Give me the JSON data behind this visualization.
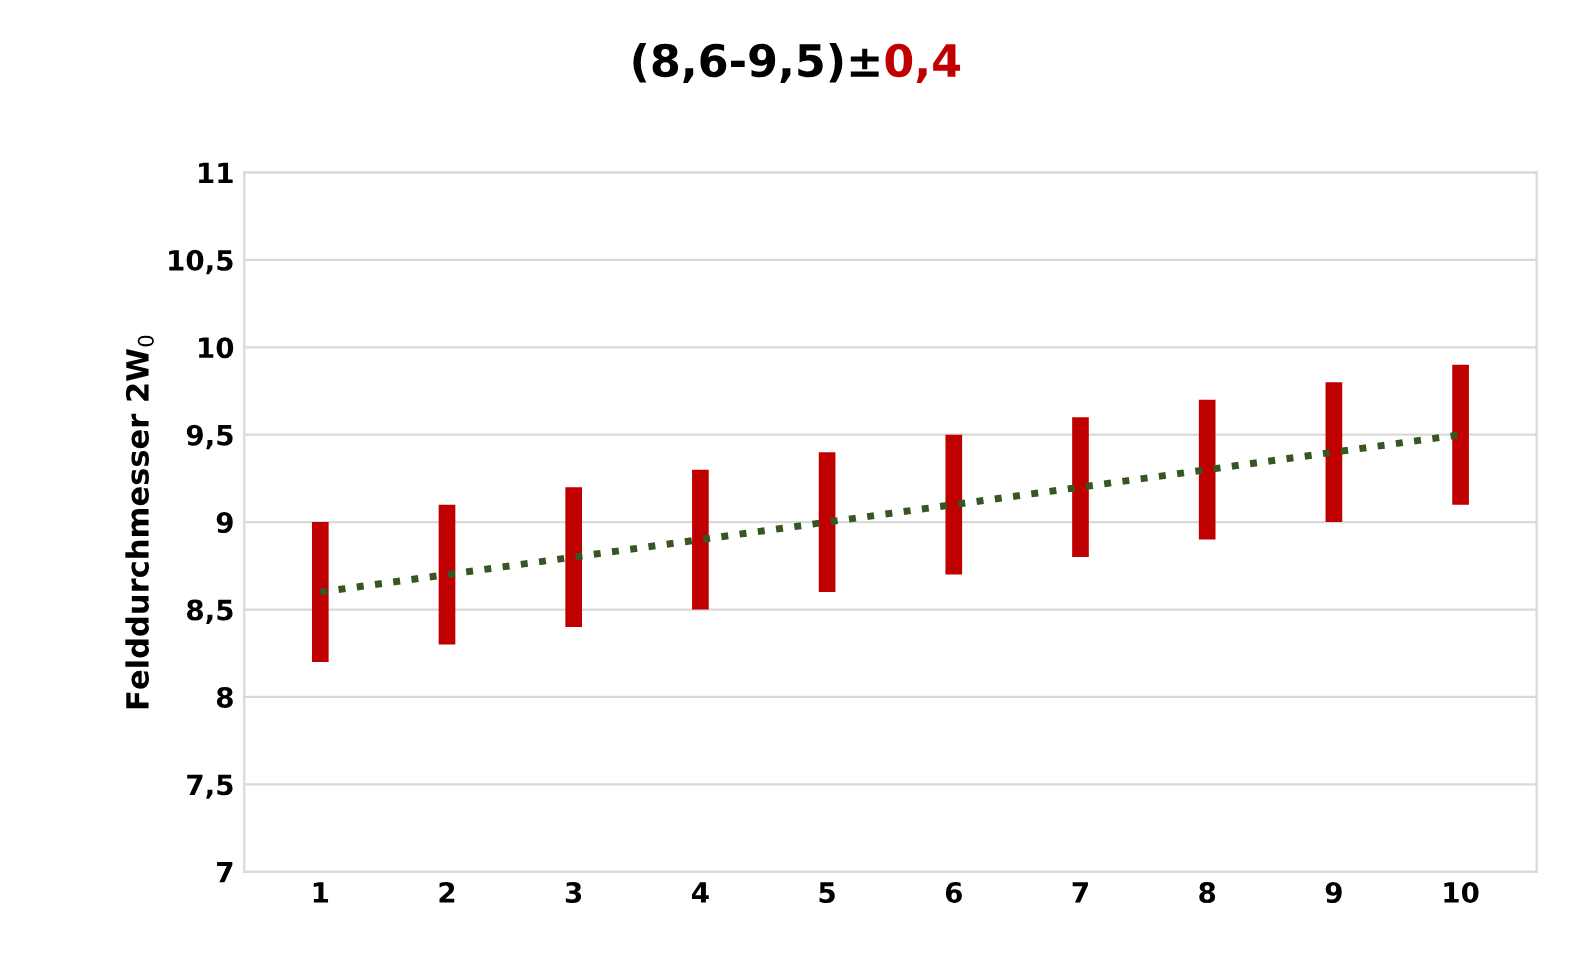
{
  "chart_data": {
    "type": "line",
    "title": "(8,6-9,5)±0,4",
    "ylabel": "Felddurchmesser 2W$_{0}$",
    "categories": [
      "1",
      "2",
      "3",
      "4",
      "5",
      "6",
      "7",
      "8",
      "9",
      "10"
    ],
    "series": [
      {
        "color": "#375623",
        "values": [
          8.6,
          8.7,
          8.8,
          8.9,
          9.0,
          9.1,
          9.2,
          9.3,
          9.4,
          9.5
        ],
        "line_style": "dotted",
        "marker": "none",
        "errors": [
          0.4,
          0.4,
          0.4,
          0.4,
          0.4,
          0.4,
          0.4,
          0.4,
          0.4,
          0.4
        ],
        "colors": [
          "#c00000",
          "#c00000",
          "#c00000",
          "#c00000",
          "#c00000",
          "#c00000",
          "#c00000",
          "#c00000",
          "#c00000",
          "#c00000"
        ]
      }
    ],
    "ylim": [
      7,
      11
    ],
    "yticks": [
      7,
      {
        "value": 7.5,
        "label": "7,5"
      },
      8,
      {
        "value": 8.5,
        "label": "8,5"
      },
      9,
      {
        "value": 9.5,
        "label": "9,5"
      },
      10,
      {
        "value": 10.5,
        "label": "10,5"
      },
      11
    ],
    "grid": "y",
    "legend": false
  }
}
